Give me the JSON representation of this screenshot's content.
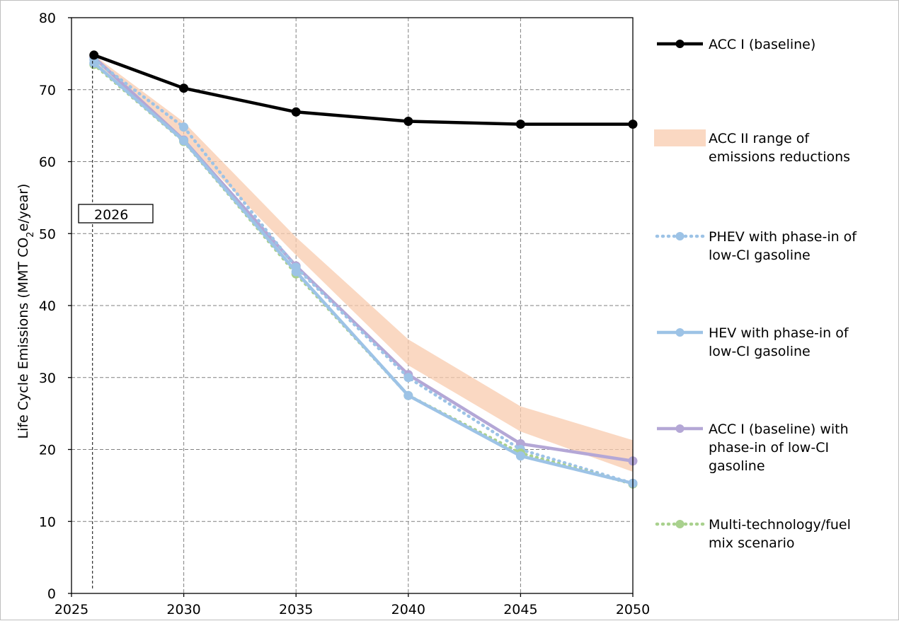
{
  "chart_data": {
    "type": "line",
    "xlabel": "",
    "ylabel": "Life Cycle Emissions (MMT CO",
    "ylabel_sub": "2",
    "ylabel_suffix": "e/year)",
    "xlim": [
      2025,
      2050
    ],
    "ylim": [
      0,
      80
    ],
    "x_ticks": [
      "2025",
      "2030",
      "2035",
      "2040",
      "2045",
      "2050"
    ],
    "y_ticks": [
      "0",
      "10",
      "20",
      "30",
      "40",
      "50",
      "60",
      "70",
      "80"
    ],
    "grid": true,
    "legend_position": "right",
    "annotation": {
      "label": "2026",
      "x": 2026
    },
    "x": [
      2026,
      2030,
      2035,
      2040,
      2045,
      2050
    ],
    "band": {
      "name": "ACC II range of emissions reductions",
      "color": "#f8cbad",
      "upper": [
        74.8,
        65.5,
        49.5,
        35.3,
        26.0,
        21.3
      ],
      "lower": [
        74.0,
        63.0,
        47.0,
        31.7,
        22.5,
        16.9
      ]
    },
    "series": [
      {
        "name": "ACC I (baseline)",
        "color": "#000000",
        "style": "solid",
        "values": [
          74.8,
          70.2,
          66.9,
          65.6,
          65.2,
          65.2
        ]
      },
      {
        "name": "PHEV with phase-in of low-CI gasoline",
        "color": "#9dc3e6",
        "style": "dotted",
        "values": [
          74.2,
          64.8,
          45.3,
          30.0,
          20.0,
          15.3
        ]
      },
      {
        "name": "HEV with phase-in of low-CI gasoline",
        "color": "#9dc3e6",
        "style": "solid",
        "values": [
          73.7,
          62.9,
          44.7,
          27.5,
          19.1,
          15.3
        ]
      },
      {
        "name": "ACC I (baseline) with phase-in of low-CI gasoline",
        "color": "#b4a7d6",
        "style": "solid",
        "values": [
          74.5,
          63.0,
          45.5,
          30.4,
          20.8,
          18.4
        ]
      },
      {
        "name": "Multi-technology/fuel mix scenario",
        "color": "#a9d18e",
        "style": "dotted",
        "values": [
          73.5,
          62.8,
          44.4,
          27.5,
          19.5,
          15.2
        ]
      }
    ]
  },
  "legend": [
    {
      "key": "acc1",
      "lines": [
        "ACC I (baseline)"
      ]
    },
    {
      "key": "band",
      "lines": [
        "ACC II range of",
        "emissions reductions"
      ]
    },
    {
      "key": "phev",
      "lines": [
        "PHEV with phase-in of",
        "low-CI gasoline"
      ]
    },
    {
      "key": "hev",
      "lines": [
        "HEV with phase-in of",
        "low-CI gasoline"
      ]
    },
    {
      "key": "acc1lowci",
      "lines": [
        "ACC I (baseline) with",
        "phase-in of low-CI",
        "gasoline"
      ]
    },
    {
      "key": "multi",
      "lines": [
        "Multi-technology/fuel",
        "mix scenario"
      ]
    }
  ]
}
